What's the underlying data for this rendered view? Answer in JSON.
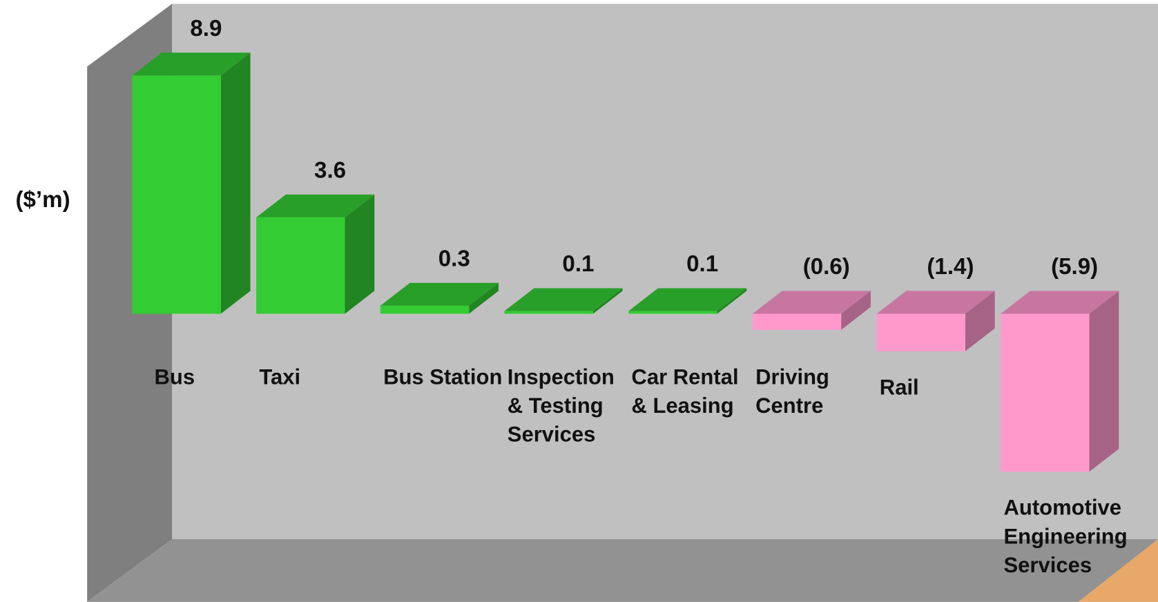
{
  "chart_data": {
    "type": "bar3d",
    "y_label": "($’m)",
    "categories": [
      "Bus",
      "Taxi",
      "Bus Station",
      "Inspection & Testing Services",
      "Car Rental & Leasing",
      "Driving Centre",
      "Rail",
      "Automotive Engineering Services"
    ],
    "values": [
      8.9,
      3.6,
      0.3,
      0.1,
      0.1,
      -0.6,
      -1.4,
      -5.9
    ],
    "value_labels": [
      "8.9",
      "3.6",
      "0.3",
      "0.1",
      "0.1",
      "(0.6)",
      "(1.4)",
      "(5.9)"
    ],
    "colors": {
      "positive": "#33cc33",
      "negative": "#ff99cc"
    },
    "ylim": [
      -8.5,
      11
    ]
  }
}
